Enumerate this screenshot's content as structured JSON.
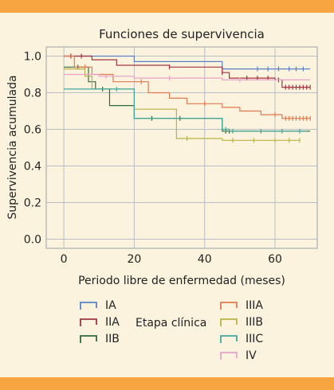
{
  "chart_data": {
    "type": "line",
    "title": "Funciones de supervivencia",
    "xlabel": "Periodo libre de enfermedad (meses)",
    "ylabel": "Supervivencia acumulada",
    "xlim": [
      -5,
      72
    ],
    "ylim": [
      -0.05,
      1.05
    ],
    "xticks": [
      0,
      20,
      40,
      60
    ],
    "yticks": [
      0.0,
      0.2,
      0.4,
      0.6,
      0.8,
      1.0
    ],
    "ytick_labels": [
      "0.0",
      "0.2",
      "0.4",
      "0.6",
      "0.8",
      "1.0"
    ],
    "grid": true,
    "legend_title": "Etapa clínica",
    "legend_position": "bottom",
    "series": [
      {
        "name": "IA",
        "color": "#5b82c6",
        "x": [
          0,
          6,
          20,
          45,
          70
        ],
        "y": [
          1.0,
          1.0,
          0.97,
          0.93,
          0.93
        ],
        "censored_x": [
          55,
          58,
          61,
          64,
          66,
          68
        ]
      },
      {
        "name": "IIA",
        "color": "#a0343f",
        "x": [
          0,
          8,
          15,
          30,
          45,
          47,
          60,
          62,
          70
        ],
        "y": [
          1.0,
          0.98,
          0.95,
          0.94,
          0.91,
          0.88,
          0.87,
          0.83,
          0.83
        ],
        "censored_x": [
          2,
          5,
          30,
          45,
          52,
          55,
          58,
          61,
          63,
          64,
          65,
          66,
          67,
          68,
          69,
          70
        ]
      },
      {
        "name": "IIB",
        "color": "#2f6b3a",
        "x": [
          0,
          7,
          9,
          13,
          20,
          45,
          70
        ],
        "y": [
          0.94,
          0.86,
          0.82,
          0.73,
          0.66,
          0.59,
          0.59
        ],
        "censored_x": [
          4,
          11,
          25,
          33,
          46,
          47
        ]
      },
      {
        "name": "IIIA",
        "color": "#e07a4f",
        "x": [
          0,
          3,
          8,
          14,
          24,
          30,
          35,
          45,
          50,
          56,
          62,
          70
        ],
        "y": [
          1.0,
          0.94,
          0.9,
          0.86,
          0.8,
          0.77,
          0.74,
          0.72,
          0.7,
          0.68,
          0.66,
          0.66
        ],
        "censored_x": [
          6,
          22,
          40,
          60,
          63,
          64,
          65,
          66,
          67,
          68,
          69,
          70
        ]
      },
      {
        "name": "IIIB",
        "color": "#b8b346",
        "x": [
          0,
          6,
          8,
          20,
          32,
          45,
          67
        ],
        "y": [
          0.93,
          0.89,
          0.82,
          0.71,
          0.55,
          0.54,
          0.54
        ],
        "censored_x": [
          20,
          35,
          48,
          54,
          60,
          64,
          67
        ]
      },
      {
        "name": "IIIC",
        "color": "#3fa8a0",
        "x": [
          0,
          9,
          20,
          45,
          47,
          69
        ],
        "y": [
          0.82,
          0.82,
          0.66,
          0.6,
          0.59,
          0.59
        ],
        "censored_x": [
          15,
          46,
          48,
          56,
          62,
          67
        ]
      },
      {
        "name": "IV",
        "color": "#e8a3c7",
        "x": [
          0,
          10,
          20,
          35,
          45,
          70
        ],
        "y": [
          0.9,
          0.89,
          0.88,
          0.88,
          0.87,
          0.87
        ],
        "censored_x": [
          12,
          30,
          50
        ]
      }
    ]
  }
}
